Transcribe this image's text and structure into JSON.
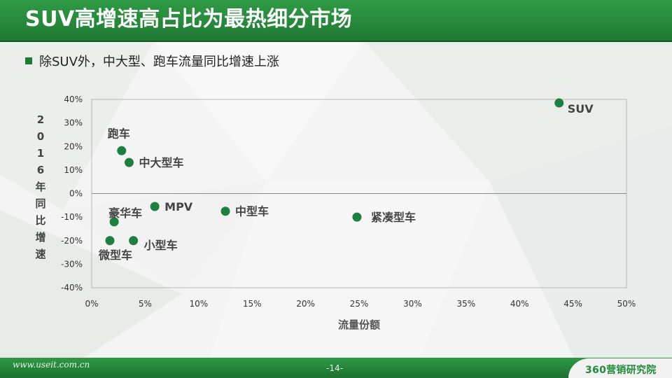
{
  "header": {
    "title": "SUV高增速高占比为最热细分市场"
  },
  "bullet": {
    "text": "除SUV外，中大型、跑车流量同比增速上涨"
  },
  "footer": {
    "url": "www.useit.com.cn",
    "page": "-14-",
    "logo": "360营销研究院"
  },
  "colors": {
    "accent": "#1f7a33",
    "point": "#1e8040"
  },
  "chart_data": {
    "type": "scatter",
    "xlabel": "流量份额",
    "ylabel": "2016年同比增速",
    "xlim": [
      0,
      0.5
    ],
    "ylim": [
      -0.4,
      0.4
    ],
    "xticks": [
      "0%",
      "5%",
      "10%",
      "15%",
      "20%",
      "25%",
      "30%",
      "35%",
      "40%",
      "45%",
      "50%"
    ],
    "yticks": [
      "40%",
      "30%",
      "20%",
      "10%",
      "0%",
      "-10%",
      "-20%",
      "-30%",
      "-40%"
    ],
    "grid": false,
    "points": [
      {
        "label": "SUV",
        "x": 0.437,
        "y": 0.385
      },
      {
        "label": "跑车",
        "x": 0.028,
        "y": 0.182
      },
      {
        "label": "中大型车",
        "x": 0.035,
        "y": 0.132
      },
      {
        "label": "MPV",
        "x": 0.059,
        "y": -0.055
      },
      {
        "label": "中型车",
        "x": 0.125,
        "y": -0.075
      },
      {
        "label": "紧凑型车",
        "x": 0.248,
        "y": -0.1
      },
      {
        "label": "豪华车",
        "x": 0.021,
        "y": -0.12
      },
      {
        "label": "小型车",
        "x": 0.039,
        "y": -0.2
      },
      {
        "label": "微型车",
        "x": 0.017,
        "y": -0.2
      }
    ]
  }
}
